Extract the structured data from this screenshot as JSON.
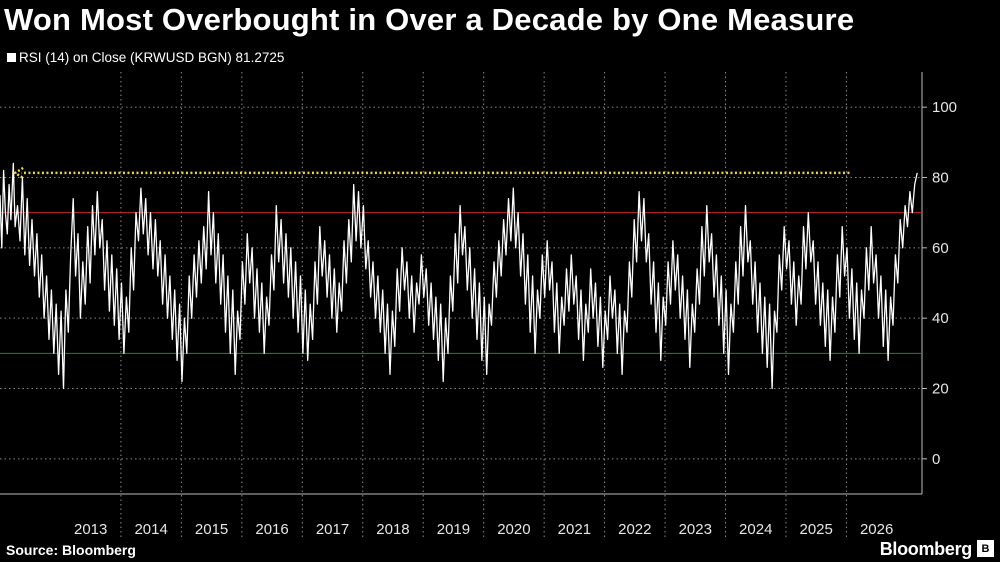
{
  "title": "Won Most Overbought in Over a Decade by One Measure",
  "legend_label": "RSI (14)  on Close (KRWUSD BGN) 81.2725",
  "source": "Source: Bloomberg",
  "brand": "Bloomberg",
  "colors": {
    "background": "#000000",
    "series": "#ffffff",
    "overbought_line": "#c62828",
    "oversold_line": "#2e7d32",
    "annotation_arrow": "#f2d33c",
    "grid": "#8a8a8a"
  },
  "chart_data": {
    "type": "line",
    "title": "Won Most Overbought in Over a Decade by One Measure",
    "series_name": "RSI (14)  on Close (KRWUSD BGN)",
    "last_value": 81.2725,
    "x_categories": [
      "2013",
      "2014",
      "2015",
      "2016",
      "2017",
      "2018",
      "2019",
      "2020",
      "2021",
      "2022",
      "2023",
      "2024",
      "2025",
      "2026"
    ],
    "y_ticks": [
      0,
      20,
      40,
      60,
      80,
      100
    ],
    "ylim": [
      -10,
      110
    ],
    "grid": "dotted",
    "reference_lines": [
      {
        "label": "overbought",
        "y": 70,
        "color": "#c62828"
      },
      {
        "label": "oversold",
        "y": 30,
        "color": "#2e7d32"
      }
    ],
    "annotation": {
      "type": "arrow",
      "y": 81.3,
      "from_year": 2026.05,
      "to_year": 2012.25,
      "style": "dotted",
      "color": "#f2d33c"
    },
    "x_start_year": 2012.0,
    "points": [
      [
        2012.0,
        75
      ],
      [
        2012.03,
        60
      ],
      [
        2012.06,
        82
      ],
      [
        2012.09,
        70
      ],
      [
        2012.12,
        64
      ],
      [
        2012.15,
        78
      ],
      [
        2012.18,
        68
      ],
      [
        2012.22,
        84
      ],
      [
        2012.25,
        66
      ],
      [
        2012.29,
        72
      ],
      [
        2012.33,
        62
      ],
      [
        2012.37,
        80
      ],
      [
        2012.41,
        58
      ],
      [
        2012.45,
        74
      ],
      [
        2012.49,
        55
      ],
      [
        2012.53,
        68
      ],
      [
        2012.57,
        52
      ],
      [
        2012.61,
        64
      ],
      [
        2012.65,
        46
      ],
      [
        2012.69,
        58
      ],
      [
        2012.73,
        40
      ],
      [
        2012.77,
        52
      ],
      [
        2012.81,
        34
      ],
      [
        2012.85,
        48
      ],
      [
        2012.89,
        30
      ],
      [
        2012.93,
        44
      ],
      [
        2012.97,
        24
      ],
      [
        2013.01,
        42
      ],
      [
        2013.05,
        20
      ],
      [
        2013.09,
        48
      ],
      [
        2013.13,
        36
      ],
      [
        2013.17,
        58
      ],
      [
        2013.21,
        74
      ],
      [
        2013.25,
        52
      ],
      [
        2013.29,
        64
      ],
      [
        2013.33,
        40
      ],
      [
        2013.37,
        56
      ],
      [
        2013.41,
        44
      ],
      [
        2013.45,
        66
      ],
      [
        2013.49,
        50
      ],
      [
        2013.53,
        72
      ],
      [
        2013.57,
        58
      ],
      [
        2013.61,
        76
      ],
      [
        2013.65,
        60
      ],
      [
        2013.69,
        68
      ],
      [
        2013.73,
        48
      ],
      [
        2013.77,
        62
      ],
      [
        2013.81,
        42
      ],
      [
        2013.85,
        58
      ],
      [
        2013.89,
        38
      ],
      [
        2013.93,
        54
      ],
      [
        2013.97,
        34
      ],
      [
        2014.01,
        50
      ],
      [
        2014.05,
        30
      ],
      [
        2014.09,
        46
      ],
      [
        2014.13,
        36
      ],
      [
        2014.17,
        60
      ],
      [
        2014.21,
        48
      ],
      [
        2014.25,
        70
      ],
      [
        2014.29,
        62
      ],
      [
        2014.33,
        77
      ],
      [
        2014.37,
        64
      ],
      [
        2014.41,
        74
      ],
      [
        2014.45,
        58
      ],
      [
        2014.49,
        70
      ],
      [
        2014.53,
        54
      ],
      [
        2014.57,
        68
      ],
      [
        2014.61,
        52
      ],
      [
        2014.65,
        62
      ],
      [
        2014.69,
        44
      ],
      [
        2014.73,
        58
      ],
      [
        2014.77,
        40
      ],
      [
        2014.81,
        52
      ],
      [
        2014.85,
        34
      ],
      [
        2014.89,
        48
      ],
      [
        2014.93,
        28
      ],
      [
        2014.97,
        44
      ],
      [
        2015.01,
        22
      ],
      [
        2015.05,
        40
      ],
      [
        2015.09,
        30
      ],
      [
        2015.13,
        52
      ],
      [
        2015.17,
        40
      ],
      [
        2015.21,
        58
      ],
      [
        2015.25,
        46
      ],
      [
        2015.29,
        62
      ],
      [
        2015.33,
        50
      ],
      [
        2015.37,
        66
      ],
      [
        2015.41,
        54
      ],
      [
        2015.45,
        76
      ],
      [
        2015.49,
        58
      ],
      [
        2015.53,
        70
      ],
      [
        2015.57,
        50
      ],
      [
        2015.61,
        64
      ],
      [
        2015.65,
        44
      ],
      [
        2015.69,
        58
      ],
      [
        2015.73,
        36
      ],
      [
        2015.77,
        52
      ],
      [
        2015.81,
        30
      ],
      [
        2015.85,
        48
      ],
      [
        2015.89,
        24
      ],
      [
        2015.93,
        42
      ],
      [
        2015.97,
        34
      ],
      [
        2016.01,
        56
      ],
      [
        2016.05,
        44
      ],
      [
        2016.09,
        64
      ],
      [
        2016.13,
        50
      ],
      [
        2016.17,
        60
      ],
      [
        2016.21,
        40
      ],
      [
        2016.25,
        54
      ],
      [
        2016.29,
        36
      ],
      [
        2016.33,
        50
      ],
      [
        2016.37,
        30
      ],
      [
        2016.41,
        46
      ],
      [
        2016.45,
        38
      ],
      [
        2016.49,
        58
      ],
      [
        2016.53,
        48
      ],
      [
        2016.57,
        72
      ],
      [
        2016.61,
        56
      ],
      [
        2016.65,
        68
      ],
      [
        2016.69,
        50
      ],
      [
        2016.73,
        64
      ],
      [
        2016.77,
        46
      ],
      [
        2016.81,
        60
      ],
      [
        2016.85,
        40
      ],
      [
        2016.89,
        56
      ],
      [
        2016.93,
        36
      ],
      [
        2016.97,
        52
      ],
      [
        2017.01,
        30
      ],
      [
        2017.05,
        48
      ],
      [
        2017.09,
        28
      ],
      [
        2017.13,
        44
      ],
      [
        2017.17,
        34
      ],
      [
        2017.21,
        56
      ],
      [
        2017.25,
        44
      ],
      [
        2017.29,
        66
      ],
      [
        2017.33,
        52
      ],
      [
        2017.37,
        62
      ],
      [
        2017.41,
        46
      ],
      [
        2017.45,
        58
      ],
      [
        2017.49,
        40
      ],
      [
        2017.53,
        54
      ],
      [
        2017.57,
        36
      ],
      [
        2017.61,
        50
      ],
      [
        2017.65,
        42
      ],
      [
        2017.69,
        62
      ],
      [
        2017.73,
        50
      ],
      [
        2017.77,
        68
      ],
      [
        2017.81,
        56
      ],
      [
        2017.85,
        78
      ],
      [
        2017.89,
        62
      ],
      [
        2017.93,
        76
      ],
      [
        2017.97,
        60
      ],
      [
        2018.01,
        72
      ],
      [
        2018.05,
        54
      ],
      [
        2018.09,
        62
      ],
      [
        2018.13,
        46
      ],
      [
        2018.17,
        56
      ],
      [
        2018.21,
        40
      ],
      [
        2018.25,
        52
      ],
      [
        2018.29,
        36
      ],
      [
        2018.33,
        48
      ],
      [
        2018.37,
        30
      ],
      [
        2018.41,
        44
      ],
      [
        2018.45,
        24
      ],
      [
        2018.49,
        42
      ],
      [
        2018.53,
        32
      ],
      [
        2018.57,
        54
      ],
      [
        2018.61,
        42
      ],
      [
        2018.65,
        60
      ],
      [
        2018.69,
        48
      ],
      [
        2018.73,
        56
      ],
      [
        2018.77,
        40
      ],
      [
        2018.81,
        52
      ],
      [
        2018.85,
        36
      ],
      [
        2018.89,
        50
      ],
      [
        2018.93,
        44
      ],
      [
        2018.97,
        58
      ],
      [
        2019.01,
        46
      ],
      [
        2019.05,
        54
      ],
      [
        2019.09,
        38
      ],
      [
        2019.13,
        50
      ],
      [
        2019.17,
        34
      ],
      [
        2019.21,
        46
      ],
      [
        2019.25,
        28
      ],
      [
        2019.29,
        44
      ],
      [
        2019.33,
        22
      ],
      [
        2019.37,
        40
      ],
      [
        2019.41,
        30
      ],
      [
        2019.45,
        52
      ],
      [
        2019.49,
        42
      ],
      [
        2019.53,
        64
      ],
      [
        2019.57,
        50
      ],
      [
        2019.61,
        72
      ],
      [
        2019.65,
        58
      ],
      [
        2019.69,
        66
      ],
      [
        2019.73,
        48
      ],
      [
        2019.77,
        60
      ],
      [
        2019.81,
        40
      ],
      [
        2019.85,
        54
      ],
      [
        2019.89,
        34
      ],
      [
        2019.93,
        50
      ],
      [
        2019.97,
        28
      ],
      [
        2020.01,
        46
      ],
      [
        2020.05,
        24
      ],
      [
        2020.09,
        44
      ],
      [
        2020.13,
        38
      ],
      [
        2020.17,
        56
      ],
      [
        2020.21,
        46
      ],
      [
        2020.25,
        62
      ],
      [
        2020.29,
        52
      ],
      [
        2020.33,
        68
      ],
      [
        2020.37,
        58
      ],
      [
        2020.41,
        74
      ],
      [
        2020.45,
        62
      ],
      [
        2020.49,
        77
      ],
      [
        2020.53,
        60
      ],
      [
        2020.57,
        70
      ],
      [
        2020.61,
        52
      ],
      [
        2020.65,
        64
      ],
      [
        2020.69,
        44
      ],
      [
        2020.73,
        58
      ],
      [
        2020.77,
        36
      ],
      [
        2020.81,
        52
      ],
      [
        2020.85,
        30
      ],
      [
        2020.89,
        48
      ],
      [
        2020.93,
        40
      ],
      [
        2020.97,
        58
      ],
      [
        2021.01,
        46
      ],
      [
        2021.05,
        62
      ],
      [
        2021.09,
        48
      ],
      [
        2021.13,
        56
      ],
      [
        2021.17,
        36
      ],
      [
        2021.21,
        50
      ],
      [
        2021.25,
        30
      ],
      [
        2021.29,
        46
      ],
      [
        2021.33,
        38
      ],
      [
        2021.37,
        54
      ],
      [
        2021.41,
        42
      ],
      [
        2021.45,
        58
      ],
      [
        2021.49,
        44
      ],
      [
        2021.53,
        52
      ],
      [
        2021.57,
        34
      ],
      [
        2021.61,
        48
      ],
      [
        2021.65,
        28
      ],
      [
        2021.69,
        44
      ],
      [
        2021.73,
        36
      ],
      [
        2021.77,
        54
      ],
      [
        2021.81,
        40
      ],
      [
        2021.85,
        50
      ],
      [
        2021.89,
        32
      ],
      [
        2021.93,
        46
      ],
      [
        2021.97,
        26
      ],
      [
        2022.01,
        42
      ],
      [
        2022.05,
        34
      ],
      [
        2022.09,
        52
      ],
      [
        2022.13,
        40
      ],
      [
        2022.17,
        48
      ],
      [
        2022.21,
        30
      ],
      [
        2022.25,
        44
      ],
      [
        2022.29,
        24
      ],
      [
        2022.33,
        42
      ],
      [
        2022.37,
        36
      ],
      [
        2022.41,
        56
      ],
      [
        2022.45,
        46
      ],
      [
        2022.49,
        68
      ],
      [
        2022.53,
        56
      ],
      [
        2022.57,
        76
      ],
      [
        2022.61,
        62
      ],
      [
        2022.65,
        74
      ],
      [
        2022.69,
        56
      ],
      [
        2022.73,
        64
      ],
      [
        2022.77,
        44
      ],
      [
        2022.81,
        56
      ],
      [
        2022.85,
        36
      ],
      [
        2022.89,
        50
      ],
      [
        2022.93,
        28
      ],
      [
        2022.97,
        46
      ],
      [
        2023.01,
        38
      ],
      [
        2023.05,
        56
      ],
      [
        2023.09,
        44
      ],
      [
        2023.13,
        62
      ],
      [
        2023.17,
        48
      ],
      [
        2023.21,
        58
      ],
      [
        2023.25,
        40
      ],
      [
        2023.29,
        52
      ],
      [
        2023.33,
        34
      ],
      [
        2023.37,
        48
      ],
      [
        2023.41,
        26
      ],
      [
        2023.45,
        44
      ],
      [
        2023.49,
        36
      ],
      [
        2023.53,
        54
      ],
      [
        2023.57,
        44
      ],
      [
        2023.61,
        66
      ],
      [
        2023.65,
        52
      ],
      [
        2023.69,
        72
      ],
      [
        2023.73,
        56
      ],
      [
        2023.77,
        64
      ],
      [
        2023.81,
        46
      ],
      [
        2023.85,
        58
      ],
      [
        2023.89,
        38
      ],
      [
        2023.93,
        52
      ],
      [
        2023.97,
        30
      ],
      [
        2024.01,
        48
      ],
      [
        2024.05,
        24
      ],
      [
        2024.09,
        44
      ],
      [
        2024.13,
        36
      ],
      [
        2024.17,
        56
      ],
      [
        2024.21,
        44
      ],
      [
        2024.25,
        66
      ],
      [
        2024.29,
        52
      ],
      [
        2024.33,
        72
      ],
      [
        2024.37,
        56
      ],
      [
        2024.41,
        62
      ],
      [
        2024.45,
        44
      ],
      [
        2024.49,
        56
      ],
      [
        2024.53,
        36
      ],
      [
        2024.57,
        50
      ],
      [
        2024.61,
        30
      ],
      [
        2024.65,
        46
      ],
      [
        2024.69,
        26
      ],
      [
        2024.73,
        44
      ],
      [
        2024.77,
        20
      ],
      [
        2024.81,
        42
      ],
      [
        2024.85,
        36
      ],
      [
        2024.89,
        58
      ],
      [
        2024.93,
        48
      ],
      [
        2024.97,
        66
      ],
      [
        2025.01,
        54
      ],
      [
        2025.05,
        62
      ],
      [
        2025.09,
        44
      ],
      [
        2025.13,
        56
      ],
      [
        2025.17,
        38
      ],
      [
        2025.21,
        52
      ],
      [
        2025.25,
        44
      ],
      [
        2025.29,
        66
      ],
      [
        2025.33,
        54
      ],
      [
        2025.37,
        70
      ],
      [
        2025.41,
        56
      ],
      [
        2025.45,
        62
      ],
      [
        2025.49,
        44
      ],
      [
        2025.53,
        56
      ],
      [
        2025.57,
        38
      ],
      [
        2025.61,
        50
      ],
      [
        2025.65,
        32
      ],
      [
        2025.69,
        48
      ],
      [
        2025.73,
        28
      ],
      [
        2025.77,
        46
      ],
      [
        2025.81,
        36
      ],
      [
        2025.85,
        58
      ],
      [
        2025.89,
        46
      ],
      [
        2025.93,
        66
      ],
      [
        2025.97,
        52
      ],
      [
        2026.01,
        60
      ],
      [
        2026.05,
        40
      ],
      [
        2026.09,
        54
      ],
      [
        2026.13,
        34
      ],
      [
        2026.17,
        50
      ],
      [
        2026.21,
        30
      ],
      [
        2026.25,
        48
      ],
      [
        2026.29,
        40
      ],
      [
        2026.33,
        60
      ],
      [
        2026.37,
        48
      ],
      [
        2026.41,
        66
      ],
      [
        2026.45,
        50
      ],
      [
        2026.49,
        58
      ],
      [
        2026.53,
        40
      ],
      [
        2026.57,
        52
      ],
      [
        2026.61,
        32
      ],
      [
        2026.65,
        48
      ],
      [
        2026.69,
        28
      ],
      [
        2026.73,
        46
      ],
      [
        2026.77,
        38
      ],
      [
        2026.81,
        58
      ],
      [
        2026.85,
        50
      ],
      [
        2026.89,
        68
      ],
      [
        2026.93,
        60
      ],
      [
        2026.97,
        72
      ],
      [
        2027.01,
        66
      ],
      [
        2027.05,
        76
      ],
      [
        2027.09,
        70
      ],
      [
        2027.13,
        78
      ],
      [
        2027.17,
        81.3
      ]
    ]
  }
}
